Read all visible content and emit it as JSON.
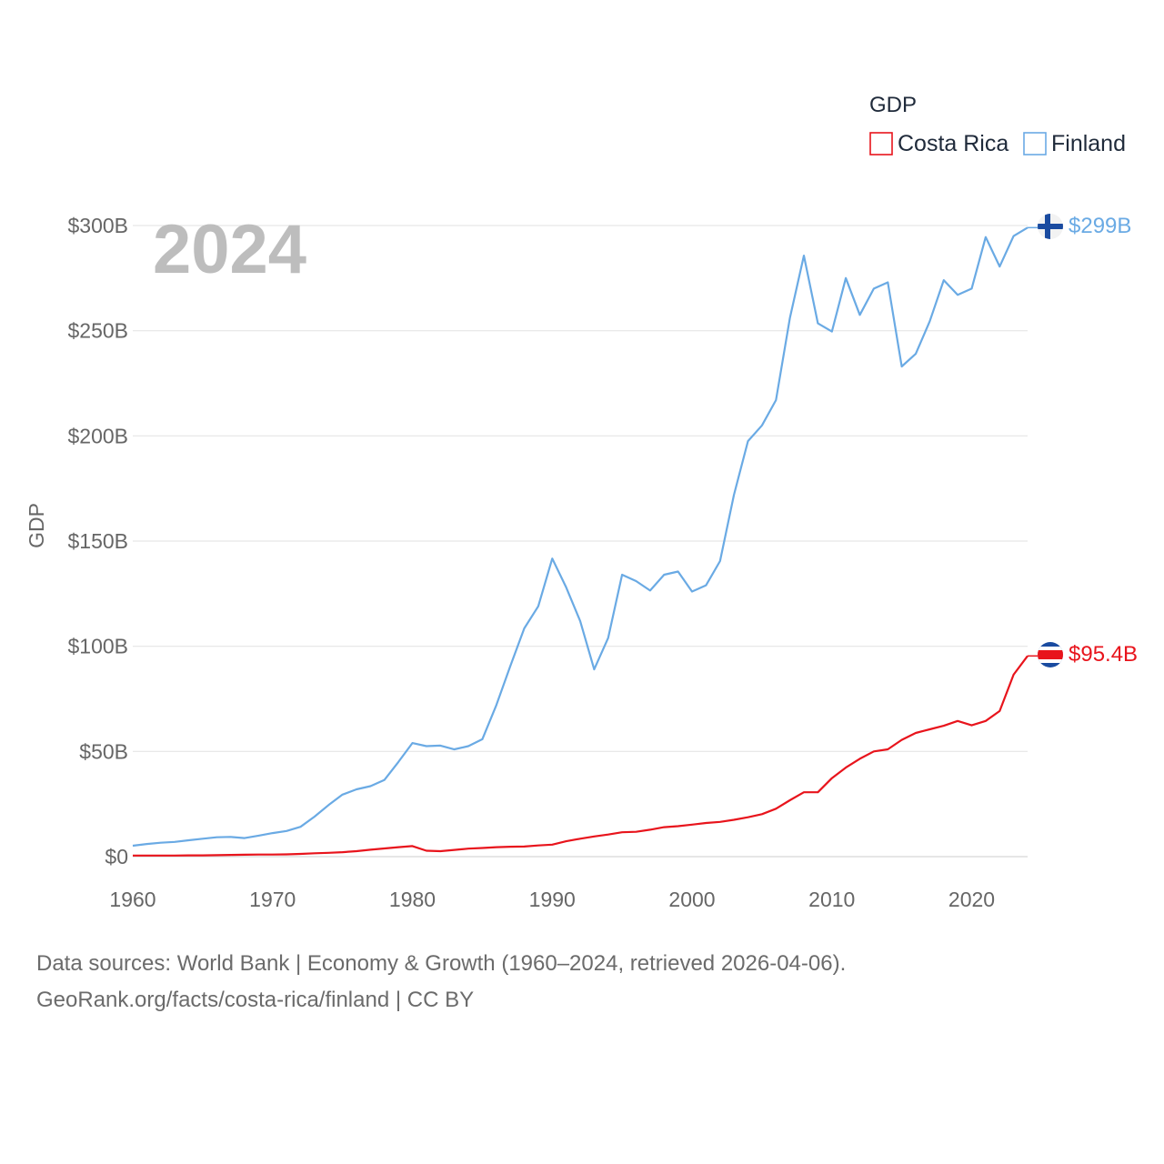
{
  "chart_data": {
    "type": "line",
    "year_label": "2024",
    "ylabel": "GDP",
    "ylim": [
      0,
      300
    ],
    "yticks": [
      0,
      50,
      100,
      150,
      200,
      250,
      300
    ],
    "ytick_labels": [
      "$0",
      "$50B",
      "$100B",
      "$150B",
      "$200B",
      "$250B",
      "$300B"
    ],
    "xlim": [
      1960,
      2024
    ],
    "xticks": [
      1960,
      1970,
      1980,
      1990,
      2000,
      2010,
      2020
    ],
    "xtick_labels": [
      "1960",
      "1970",
      "1980",
      "1990",
      "2000",
      "2010",
      "2020"
    ],
    "legend": {
      "title": "GDP",
      "position": "top-right"
    },
    "series": [
      {
        "name": "Costa Rica",
        "color": "#e8141c",
        "end_label": "$95.4B",
        "flag": "costa-rica-flag",
        "x": [
          1960,
          1961,
          1962,
          1963,
          1964,
          1965,
          1966,
          1967,
          1968,
          1969,
          1970,
          1971,
          1972,
          1973,
          1974,
          1975,
          1976,
          1977,
          1978,
          1979,
          1980,
          1981,
          1982,
          1983,
          1984,
          1985,
          1986,
          1987,
          1988,
          1989,
          1990,
          1991,
          1992,
          1993,
          1994,
          1995,
          1996,
          1997,
          1998,
          1999,
          2000,
          2001,
          2002,
          2003,
          2004,
          2005,
          2006,
          2007,
          2008,
          2009,
          2010,
          2011,
          2012,
          2013,
          2014,
          2015,
          2016,
          2017,
          2018,
          2019,
          2020,
          2021,
          2022,
          2023,
          2024
        ],
        "values": [
          0.5,
          0.5,
          0.5,
          0.5,
          0.6,
          0.6,
          0.7,
          0.8,
          0.9,
          1.0,
          1.0,
          1.1,
          1.3,
          1.6,
          1.8,
          2.1,
          2.6,
          3.3,
          3.9,
          4.5,
          5.0,
          2.8,
          2.6,
          3.2,
          3.8,
          4.1,
          4.5,
          4.7,
          4.8,
          5.3,
          5.7,
          7.3,
          8.5,
          9.6,
          10.5,
          11.6,
          11.8,
          12.8,
          14.0,
          14.5,
          15.2,
          16.0,
          16.5,
          17.5,
          18.7,
          20.2,
          22.8,
          26.8,
          30.6,
          30.6,
          37.3,
          42.3,
          46.5,
          50.0,
          51.0,
          55.5,
          58.8,
          60.5,
          62.2,
          64.5,
          62.4,
          64.5,
          69.2,
          86.5,
          95.4
        ]
      },
      {
        "name": "Finland",
        "color": "#6aaae4",
        "end_label": "$299B",
        "flag": "finland-flag",
        "x": [
          1960,
          1961,
          1962,
          1963,
          1964,
          1965,
          1966,
          1967,
          1968,
          1969,
          1970,
          1971,
          1972,
          1973,
          1974,
          1975,
          1976,
          1977,
          1978,
          1979,
          1980,
          1981,
          1982,
          1983,
          1984,
          1985,
          1986,
          1987,
          1988,
          1989,
          1990,
          1991,
          1992,
          1993,
          1994,
          1995,
          1996,
          1997,
          1998,
          1999,
          2000,
          2001,
          2002,
          2003,
          2004,
          2005,
          2006,
          2007,
          2008,
          2009,
          2010,
          2011,
          2012,
          2013,
          2014,
          2015,
          2016,
          2017,
          2018,
          2019,
          2020,
          2021,
          2022,
          2023,
          2024
        ],
        "values": [
          5.2,
          6.0,
          6.6,
          7.0,
          7.8,
          8.5,
          9.2,
          9.4,
          8.8,
          10.0,
          11.2,
          12.2,
          14.2,
          19.0,
          24.5,
          29.5,
          32.0,
          33.5,
          36.5,
          45.0,
          54.0,
          52.5,
          52.8,
          51.0,
          52.5,
          55.8,
          72.0,
          90.5,
          108.5,
          119.0,
          141.7,
          128.0,
          112.0,
          89.0,
          104.0,
          134.0,
          131.0,
          126.5,
          134.0,
          135.5,
          126.0,
          129.0,
          140.5,
          172.0,
          197.5,
          205.0,
          217.0,
          256.0,
          285.7,
          253.5,
          249.6,
          275.0,
          257.5,
          270.0,
          273.0,
          233.0,
          239.0,
          254.5,
          274.0,
          267.0,
          270.0,
          294.5,
          280.5,
          295.0,
          299.0
        ]
      }
    ]
  },
  "footer": {
    "line1": "Data sources: World Bank | Economy & Growth (1960–2024, retrieved 2026-04-06).",
    "line2": "GeoRank.org/facts/costa-rica/finland | CC BY"
  }
}
